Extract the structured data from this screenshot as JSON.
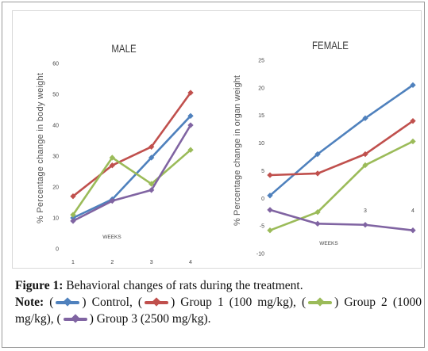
{
  "chart_data": [
    {
      "type": "line",
      "title": "MALE",
      "xlabel": "WEEKS",
      "ylabel": "% Percentage change in body weight",
      "categories": [
        "1",
        "2",
        "3",
        "4"
      ],
      "ylim": [
        0,
        60
      ],
      "yticks": [
        0,
        10,
        20,
        30,
        40,
        50,
        60
      ],
      "series": [
        {
          "name": "Control",
          "color": "#4f81bd",
          "values": [
            10,
            16,
            29.5,
            43
          ]
        },
        {
          "name": "Group 1 (100 mg/kg)",
          "color": "#c0504d",
          "values": [
            17,
            27,
            33,
            50.5
          ]
        },
        {
          "name": "Group 2 (1000 mg/kg)",
          "color": "#9bbb59",
          "values": [
            11,
            29.5,
            21,
            32
          ]
        },
        {
          "name": "Group 3 (2500 mg/kg)",
          "color": "#8064a2",
          "values": [
            9,
            15.5,
            19,
            40
          ]
        }
      ]
    },
    {
      "type": "line",
      "title": "FEMALE",
      "xlabel": "WEEKS",
      "ylabel": "% Percentage change in organ weight",
      "categories": [
        "1",
        "2",
        "3",
        "4"
      ],
      "ylim": [
        -10,
        25
      ],
      "yticks": [
        -10,
        -5,
        0,
        5,
        10,
        15,
        20,
        25
      ],
      "series": [
        {
          "name": "Control",
          "color": "#4f81bd",
          "values": [
            0.5,
            8,
            14.5,
            20.5
          ]
        },
        {
          "name": "Group 1 (100 mg/kg)",
          "color": "#c0504d",
          "values": [
            4.2,
            4.5,
            8,
            14
          ]
        },
        {
          "name": "Group 2 (1000 mg/kg)",
          "color": "#9bbb59",
          "values": [
            -5.8,
            -2.5,
            6,
            10.3
          ]
        },
        {
          "name": "Group 3 (2500 mg/kg)",
          "color": "#8064a2",
          "values": [
            -2.1,
            -4.6,
            -4.8,
            -5.8
          ]
        }
      ]
    }
  ],
  "caption": {
    "label": "Figure 1:",
    "text": " Behavioral changes of rats during the treatment.",
    "note_label": "Note:",
    "legend": [
      {
        "text": ") Control, (",
        "color": "#4f81bd"
      },
      {
        "text": ") Group 1 (100 mg/kg), (",
        "color": "#c0504d"
      },
      {
        "text": ") Group 2 (1000 mg/kg), (",
        "color": "#9bbb59"
      },
      {
        "text": ") Group 3 (2500 mg/kg).",
        "color": "#8064a2"
      }
    ],
    "open_paren": "("
  }
}
